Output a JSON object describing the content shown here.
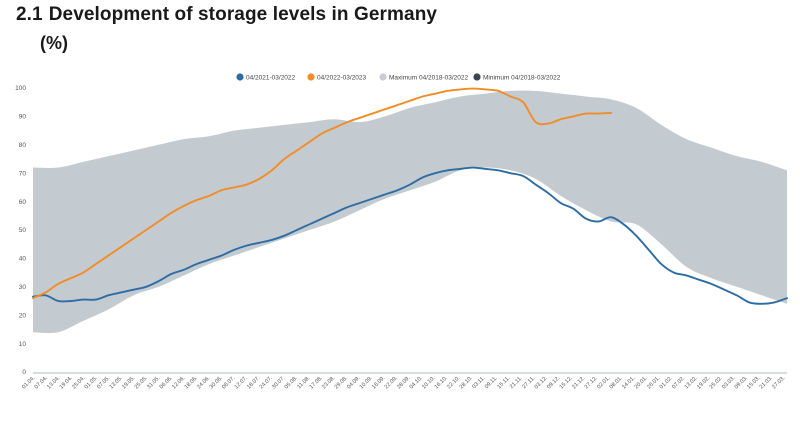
{
  "header": {
    "number": "2.1",
    "title": "Development of storage levels in Germany",
    "unit": "(%)"
  },
  "chart_data": {
    "type": "line",
    "title": "Development of storage levels in Germany",
    "ylabel": "(%)",
    "ylim": [
      0,
      100
    ],
    "y_ticks": [
      0,
      10,
      20,
      30,
      40,
      50,
      60,
      70,
      80,
      90,
      100
    ],
    "x_tick_labels": [
      "01.04.",
      "07.04.",
      "13.04.",
      "19.04.",
      "25.04.",
      "01.05.",
      "07.05.",
      "13.05.",
      "19.05.",
      "25.05.",
      "31.05.",
      "06.06.",
      "12.06.",
      "18.06.",
      "24.06.",
      "30.06.",
      "06.07.",
      "12.07.",
      "18.07.",
      "24.07.",
      "30.07.",
      "05.08.",
      "11.08.",
      "17.08.",
      "23.08.",
      "29.08.",
      "04.09.",
      "10.09.",
      "16.09.",
      "22.09.",
      "28.09.",
      "04.10.",
      "10.10.",
      "16.10.",
      "22.10.",
      "28.10.",
      "03.11.",
      "09.11.",
      "15.11.",
      "21.11.",
      "27.11.",
      "03.12.",
      "09.12.",
      "15.12.",
      "21.12.",
      "27.12.",
      "02.01.",
      "08.01.",
      "14.01.",
      "20.01.",
      "26.01.",
      "01.02.",
      "07.02.",
      "13.02.",
      "19.02.",
      "25.02.",
      "03.03.",
      "09.03.",
      "15.03.",
      "21.03.",
      "27.03."
    ],
    "legend": {
      "position": "top-center",
      "entries": [
        {
          "label": "04/2021-03/2022",
          "color": "#2e6da4"
        },
        {
          "label": "04/2022-03/2023",
          "color": "#f28c28"
        },
        {
          "label": "Maximum 04/2018-03/2022",
          "color": "#c7cdd2"
        },
        {
          "label": "Minimum 04/2018-03/2022",
          "color": "#3b4650"
        }
      ]
    },
    "band": {
      "color": "#c4cbd0",
      "upper": [
        [
          0,
          72
        ],
        [
          2,
          72
        ],
        [
          4,
          74
        ],
        [
          6,
          76
        ],
        [
          8,
          78
        ],
        [
          10,
          80
        ],
        [
          12,
          82
        ],
        [
          14,
          83
        ],
        [
          16,
          85
        ],
        [
          18,
          86
        ],
        [
          20,
          87
        ],
        [
          22,
          88
        ],
        [
          24,
          89
        ],
        [
          26,
          88
        ],
        [
          28,
          90
        ],
        [
          30,
          93
        ],
        [
          32,
          95
        ],
        [
          34,
          97
        ],
        [
          36,
          98
        ],
        [
          38,
          99
        ],
        [
          40,
          99
        ],
        [
          42,
          98
        ],
        [
          44,
          97
        ],
        [
          46,
          96
        ],
        [
          48,
          93
        ],
        [
          50,
          87
        ],
        [
          52,
          82
        ],
        [
          54,
          79
        ],
        [
          56,
          76
        ],
        [
          58,
          74
        ],
        [
          60,
          71
        ]
      ],
      "lower": [
        [
          0,
          14
        ],
        [
          2,
          14
        ],
        [
          4,
          18
        ],
        [
          6,
          22
        ],
        [
          8,
          27
        ],
        [
          10,
          30
        ],
        [
          12,
          34
        ],
        [
          14,
          38
        ],
        [
          16,
          41
        ],
        [
          18,
          44
        ],
        [
          20,
          47
        ],
        [
          22,
          50
        ],
        [
          24,
          53
        ],
        [
          26,
          57
        ],
        [
          28,
          61
        ],
        [
          30,
          64
        ],
        [
          32,
          67
        ],
        [
          34,
          71
        ],
        [
          36,
          72
        ],
        [
          38,
          71
        ],
        [
          40,
          68
        ],
        [
          42,
          62
        ],
        [
          44,
          57
        ],
        [
          46,
          53
        ],
        [
          48,
          52
        ],
        [
          50,
          45
        ],
        [
          52,
          37
        ],
        [
          54,
          33
        ],
        [
          56,
          30
        ],
        [
          58,
          27
        ],
        [
          60,
          24
        ]
      ]
    },
    "series": [
      {
        "name": "04/2021-03/2022",
        "color": "#2e6da4",
        "points": [
          [
            0,
            26.5
          ],
          [
            1,
            27
          ],
          [
            2,
            25
          ],
          [
            3,
            25
          ],
          [
            4,
            25.5
          ],
          [
            5,
            25.5
          ],
          [
            6,
            27
          ],
          [
            7,
            28
          ],
          [
            8,
            29
          ],
          [
            9,
            30
          ],
          [
            10,
            32
          ],
          [
            11,
            34.5
          ],
          [
            12,
            36
          ],
          [
            13,
            38
          ],
          [
            14,
            39.5
          ],
          [
            15,
            41
          ],
          [
            16,
            43
          ],
          [
            17,
            44.5
          ],
          [
            18,
            45.5
          ],
          [
            19,
            46.5
          ],
          [
            20,
            48
          ],
          [
            21,
            50
          ],
          [
            22,
            52
          ],
          [
            23,
            54
          ],
          [
            24,
            56
          ],
          [
            25,
            58
          ],
          [
            26,
            59.5
          ],
          [
            27,
            61
          ],
          [
            28,
            62.5
          ],
          [
            29,
            64
          ],
          [
            30,
            66
          ],
          [
            31,
            68.5
          ],
          [
            32,
            70
          ],
          [
            33,
            71
          ],
          [
            34,
            71.5
          ],
          [
            35,
            72
          ],
          [
            36,
            71.5
          ],
          [
            37,
            71
          ],
          [
            38,
            70
          ],
          [
            39,
            69
          ],
          [
            40,
            66
          ],
          [
            41,
            63
          ],
          [
            42,
            59.5
          ],
          [
            43,
            57.5
          ],
          [
            44,
            54
          ],
          [
            45,
            53
          ],
          [
            46,
            54.5
          ],
          [
            47,
            52
          ],
          [
            48,
            48
          ],
          [
            49,
            43
          ],
          [
            50,
            38
          ],
          [
            51,
            35
          ],
          [
            52,
            34
          ],
          [
            53,
            32.5
          ],
          [
            54,
            31
          ],
          [
            55,
            29
          ],
          [
            56,
            27
          ],
          [
            57,
            24.5
          ],
          [
            58,
            24
          ],
          [
            59,
            24.5
          ],
          [
            60,
            26
          ]
        ]
      },
      {
        "name": "04/2022-03/2023",
        "color": "#f28c28",
        "points": [
          [
            0,
            26
          ],
          [
            1,
            28
          ],
          [
            2,
            31
          ],
          [
            3,
            33
          ],
          [
            4,
            35
          ],
          [
            5,
            38
          ],
          [
            6,
            41
          ],
          [
            7,
            44
          ],
          [
            8,
            47
          ],
          [
            9,
            50
          ],
          [
            10,
            53
          ],
          [
            11,
            56
          ],
          [
            12,
            58.5
          ],
          [
            13,
            60.5
          ],
          [
            14,
            62
          ],
          [
            15,
            64
          ],
          [
            16,
            65
          ],
          [
            17,
            66
          ],
          [
            18,
            68
          ],
          [
            19,
            71
          ],
          [
            20,
            75
          ],
          [
            21,
            78
          ],
          [
            22,
            81
          ],
          [
            23,
            84
          ],
          [
            24,
            86
          ],
          [
            25,
            88
          ],
          [
            26,
            89.5
          ],
          [
            27,
            91
          ],
          [
            28,
            92.5
          ],
          [
            29,
            94
          ],
          [
            30,
            95.5
          ],
          [
            31,
            97
          ],
          [
            32,
            98
          ],
          [
            33,
            99
          ],
          [
            34,
            99.5
          ],
          [
            35,
            99.8
          ],
          [
            36,
            99.5
          ],
          [
            37,
            99
          ],
          [
            38,
            97
          ],
          [
            39,
            95
          ],
          [
            40,
            88
          ],
          [
            41,
            87.5
          ],
          [
            42,
            89
          ],
          [
            43,
            90
          ],
          [
            44,
            91
          ],
          [
            45,
            91
          ],
          [
            46,
            91.2
          ]
        ]
      }
    ],
    "x_domain": [
      0,
      60
    ],
    "grid": false
  }
}
